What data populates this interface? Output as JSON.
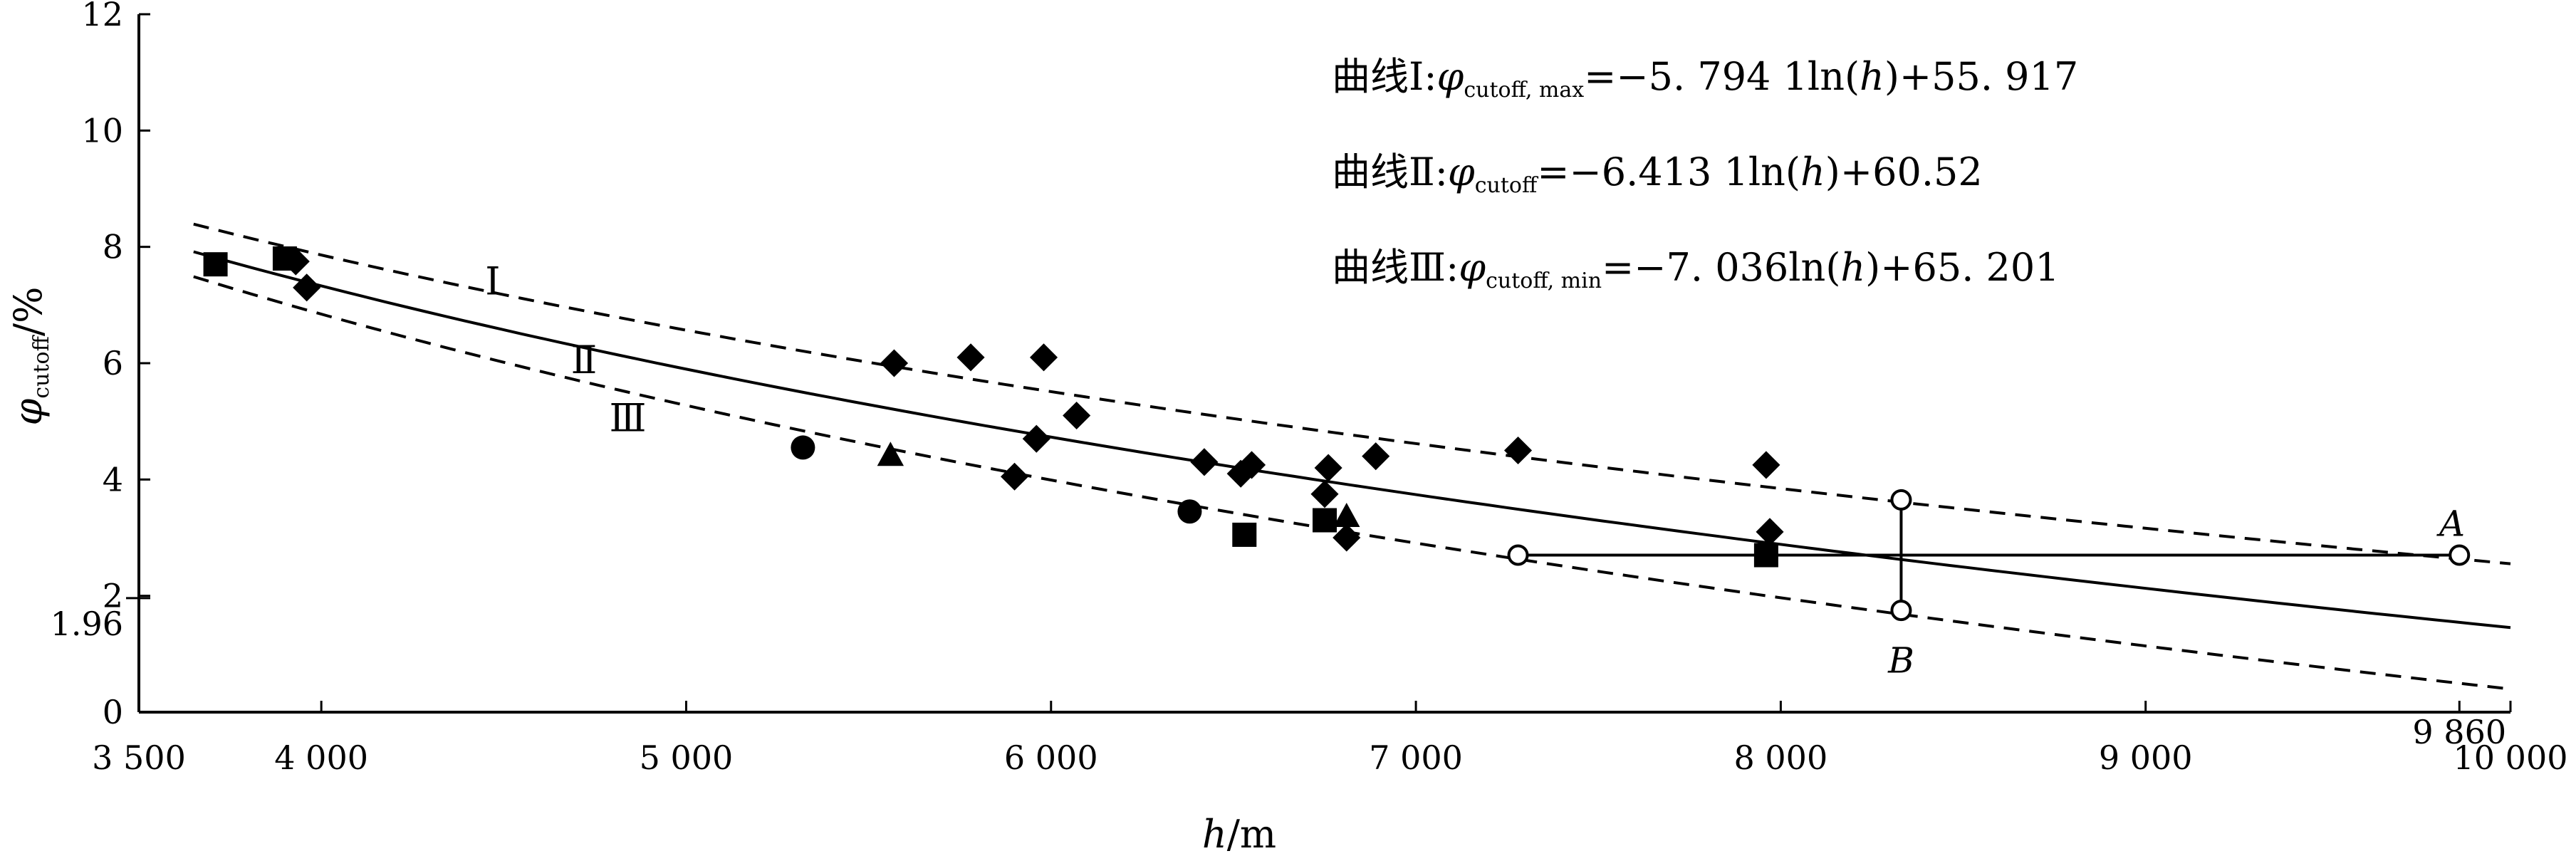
{
  "chart_data": {
    "type": "scatter",
    "xaxis": {
      "range": [
        3500,
        10000
      ],
      "ticks": [
        3500,
        4000,
        5000,
        6000,
        7000,
        8000,
        9000,
        10000
      ],
      "tick_labels": [
        "3 500",
        "4 000",
        "5 000",
        "6 000",
        "7 000",
        "8 000",
        "9 000",
        "10 000"
      ],
      "extra_tick": {
        "value": 9860,
        "label": "9 860"
      },
      "label_var": "h",
      "label_unit": "/m"
    },
    "yaxis": {
      "range": [
        0,
        12
      ],
      "ticks": [
        0,
        2,
        4,
        6,
        8,
        10,
        12
      ],
      "tick_labels": [
        "0",
        "2",
        "4",
        "6",
        "8",
        "10",
        "12"
      ],
      "extra_tick": {
        "value": 1.96,
        "label": "1.96"
      },
      "label_var": "φ",
      "label_sub": "cutoff",
      "label_unit": "/%"
    },
    "grid": false,
    "curves": [
      {
        "id": "I",
        "label": "Ⅰ",
        "style": "dashed",
        "a": -5.7941,
        "b": 55.917,
        "x_range": [
          3650,
          10000
        ]
      },
      {
        "id": "II",
        "label": "Ⅱ",
        "style": "solid",
        "a": -6.4131,
        "b": 60.52,
        "x_range": [
          3650,
          10000
        ]
      },
      {
        "id": "III",
        "label": "Ⅲ",
        "style": "dashed",
        "a": -7.036,
        "b": 65.201,
        "x_range": [
          3650,
          10000
        ]
      }
    ],
    "curve_labels": [
      {
        "text": "Ⅰ",
        "x": 4470,
        "y": 7.4
      },
      {
        "text": "Ⅱ",
        "x": 4720,
        "y": 6.05
      },
      {
        "text": "Ⅲ",
        "x": 4840,
        "y": 5.05
      }
    ],
    "equations": [
      {
        "prefix": "曲线Ⅰ:",
        "var": "φ",
        "sub": "cutoff, max",
        "rhs_pre": "=−5. 794 1ln(",
        "rhs_var": "h",
        "rhs_post": ")+55. 917"
      },
      {
        "prefix": "曲线Ⅱ:",
        "var": "φ",
        "sub": "cutoff",
        "rhs_pre": "=−6.413 1ln(",
        "rhs_var": "h",
        "rhs_post": ")+60.52"
      },
      {
        "prefix": "曲线Ⅲ:",
        "var": "φ",
        "sub": "cutoff, min",
        "rhs_pre": "=−7. 036ln(",
        "rhs_var": "h",
        "rhs_post": ")+65. 201"
      }
    ],
    "series": [
      {
        "marker": "diamond",
        "points": [
          [
            3960,
            7.3
          ],
          [
            3930,
            7.75
          ],
          [
            5570,
            6.0
          ],
          [
            5780,
            6.1
          ],
          [
            5980,
            6.1
          ],
          [
            6070,
            5.1
          ],
          [
            5960,
            4.7
          ],
          [
            5900,
            4.05
          ],
          [
            6420,
            4.3
          ],
          [
            6520,
            4.1
          ],
          [
            6550,
            4.25
          ],
          [
            6760,
            4.2
          ],
          [
            6890,
            4.4
          ],
          [
            7280,
            4.5
          ],
          [
            6750,
            3.75
          ],
          [
            6810,
            3.0
          ],
          [
            7960,
            4.25
          ],
          [
            7970,
            3.1
          ]
        ]
      },
      {
        "marker": "square",
        "points": [
          [
            3710,
            7.7
          ],
          [
            3900,
            7.8
          ],
          [
            6530,
            3.05
          ],
          [
            6750,
            3.3
          ],
          [
            7960,
            2.7
          ]
        ]
      },
      {
        "marker": "circle",
        "points": [
          [
            5320,
            4.55
          ],
          [
            6380,
            3.45
          ]
        ]
      },
      {
        "marker": "triangle",
        "points": [
          [
            5560,
            4.4
          ],
          [
            6810,
            3.35
          ]
        ]
      }
    ],
    "hline": {
      "y": 2.7,
      "x_range": [
        7280,
        9860
      ]
    },
    "vline": {
      "x": 8330,
      "y_range": [
        1.75,
        3.65
      ]
    },
    "open_points": [
      [
        7280,
        2.7
      ],
      [
        9860,
        2.7
      ],
      [
        8330,
        3.65
      ],
      [
        8330,
        1.75
      ]
    ],
    "point_labels": [
      {
        "text": "A",
        "x": 9840,
        "y": 3.25
      },
      {
        "text": "B",
        "x": 8330,
        "y": 0.9
      }
    ]
  }
}
